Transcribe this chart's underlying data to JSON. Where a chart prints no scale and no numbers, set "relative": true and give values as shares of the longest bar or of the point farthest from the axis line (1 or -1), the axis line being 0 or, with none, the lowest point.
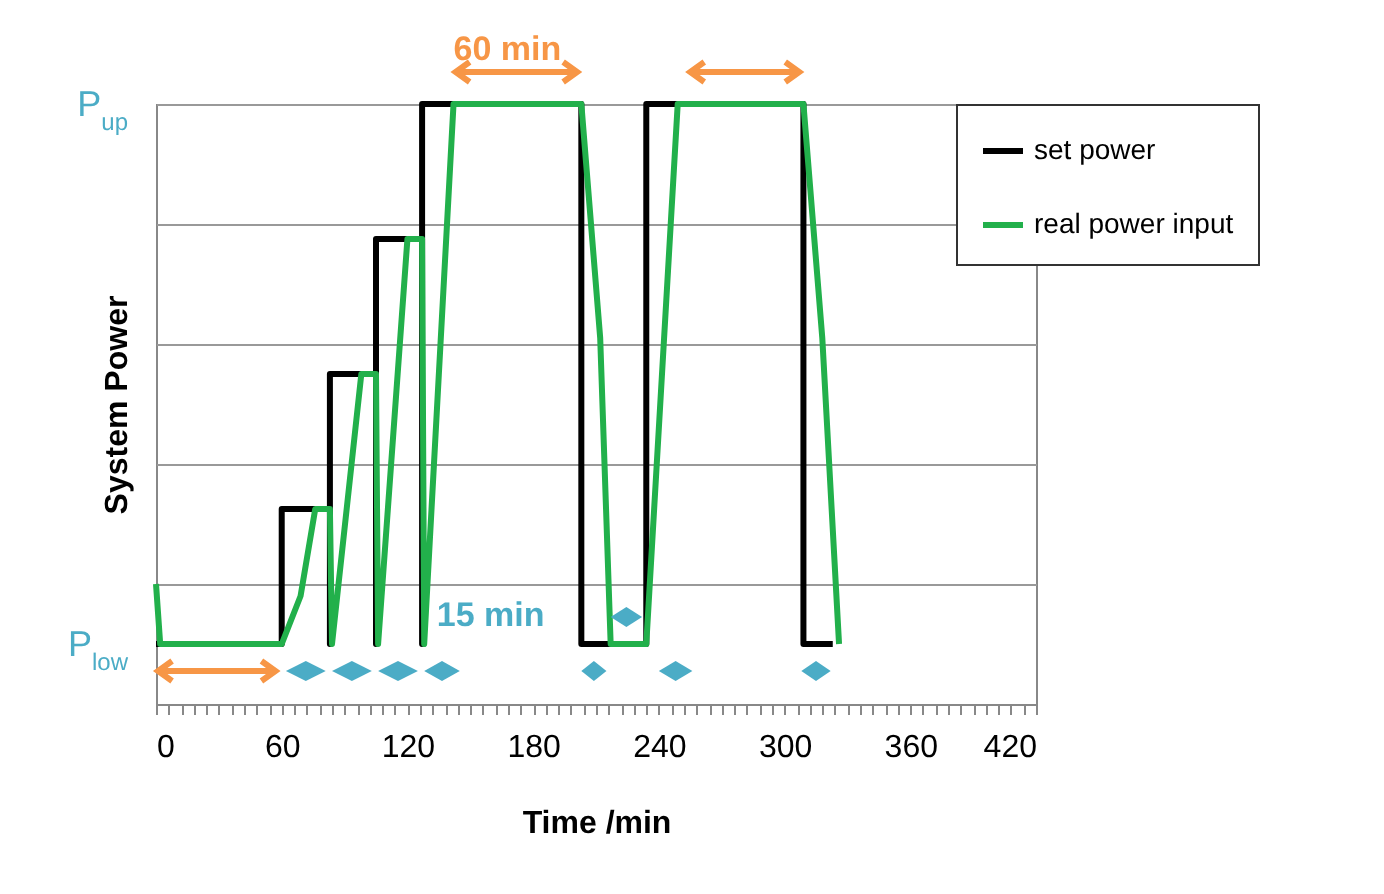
{
  "chart_data": {
    "type": "line",
    "xlabel": "Time /min",
    "ylabel": "System Power",
    "xlim": [
      0,
      420
    ],
    "xticks": [
      0,
      {
        "value": 6,
        "label": null
      },
      {
        "value": 12,
        "label": null
      },
      {
        "value": 18,
        "label": null
      },
      {
        "value": 24,
        "label": null
      },
      {
        "value": 30,
        "label": null
      },
      {
        "value": 36,
        "label": null
      },
      {
        "value": 42,
        "label": null
      },
      {
        "value": 48,
        "label": null
      },
      {
        "value": 54,
        "label": null
      },
      60,
      {
        "value": 66,
        "label": null
      },
      {
        "value": 72,
        "label": null
      },
      {
        "value": 78,
        "label": null
      },
      {
        "value": 84,
        "label": null
      },
      {
        "value": 90,
        "label": null
      },
      {
        "value": 96,
        "label": null
      },
      {
        "value": 102,
        "label": null
      },
      {
        "value": 108,
        "label": null
      },
      {
        "value": 114,
        "label": null
      },
      120,
      {
        "value": 126,
        "label": null
      },
      {
        "value": 132,
        "label": null
      },
      {
        "value": 138,
        "label": null
      },
      {
        "value": 144,
        "label": null
      },
      {
        "value": 150,
        "label": null
      },
      {
        "value": 156,
        "label": null
      },
      {
        "value": 162,
        "label": null
      },
      {
        "value": 168,
        "label": null
      },
      {
        "value": 174,
        "label": null
      },
      180,
      {
        "value": 186,
        "label": null
      },
      {
        "value": 192,
        "label": null
      },
      {
        "value": 198,
        "label": null
      },
      {
        "value": 204,
        "label": null
      },
      {
        "value": 210,
        "label": null
      },
      {
        "value": 216,
        "label": null
      },
      {
        "value": 222,
        "label": null
      },
      {
        "value": 228,
        "label": null
      },
      {
        "value": 234,
        "label": null
      },
      240,
      {
        "value": 246,
        "label": null
      },
      {
        "value": 252,
        "label": null
      },
      {
        "value": 258,
        "label": null
      },
      {
        "value": 264,
        "label": null
      },
      {
        "value": 270,
        "label": null
      },
      {
        "value": 276,
        "label": null
      },
      {
        "value": 282,
        "label": null
      },
      {
        "value": 288,
        "label": null
      },
      {
        "value": 294,
        "label": null
      },
      300,
      {
        "value": 306,
        "label": null
      },
      {
        "value": 312,
        "label": null
      },
      {
        "value": 318,
        "label": null
      },
      {
        "value": 324,
        "label": null
      },
      {
        "value": 330,
        "label": null
      },
      {
        "value": 336,
        "label": null
      },
      {
        "value": 342,
        "label": null
      },
      {
        "value": 348,
        "label": null
      },
      {
        "value": 354,
        "label": null
      },
      360,
      {
        "value": 366,
        "label": null
      },
      {
        "value": 372,
        "label": null
      },
      {
        "value": 378,
        "label": null
      },
      {
        "value": 384,
        "label": null
      },
      {
        "value": 390,
        "label": null
      },
      {
        "value": 396,
        "label": null
      },
      {
        "value": 402,
        "label": null
      },
      {
        "value": 408,
        "label": null
      },
      {
        "value": 414,
        "label": null
      },
      420
    ],
    "relative": true,
    "grid": "y",
    "legend": "right",
    "line_style": "solid",
    "series": [
      {
        "name": "set power",
        "color": "#000000",
        "x": [
          0,
          60,
          60,
          83,
          83,
          83,
          105,
          105,
          105,
          127,
          127,
          127,
          203,
          203,
          234,
          234,
          309,
          309,
          323
        ],
        "values": [
          0.1,
          0.1,
          0.325,
          0.325,
          0.1,
          0.55,
          0.55,
          0.1,
          0.775,
          0.775,
          0.1,
          1.0,
          1.0,
          0.1,
          0.1,
          1.0,
          1.0,
          0.1,
          0.1
        ]
      },
      {
        "name": "real power input",
        "color": "#22b04b",
        "x": [
          0,
          2,
          60,
          69,
          76,
          83,
          84,
          98,
          105,
          106,
          120,
          127,
          128,
          142,
          203,
          212,
          217,
          234,
          249,
          309,
          318,
          326
        ],
        "values": [
          0.2,
          0.1,
          0.1,
          0.18,
          0.325,
          0.325,
          0.1,
          0.55,
          0.55,
          0.1,
          0.775,
          0.775,
          0.1,
          1.0,
          1.0,
          0.61,
          0.1,
          0.1,
          1.0,
          1.0,
          0.61,
          0.1
        ]
      }
    ],
    "annotations": [
      "P$_{up}$",
      "P$_{low}$",
      "60 min",
      "15 min"
    ]
  }
}
